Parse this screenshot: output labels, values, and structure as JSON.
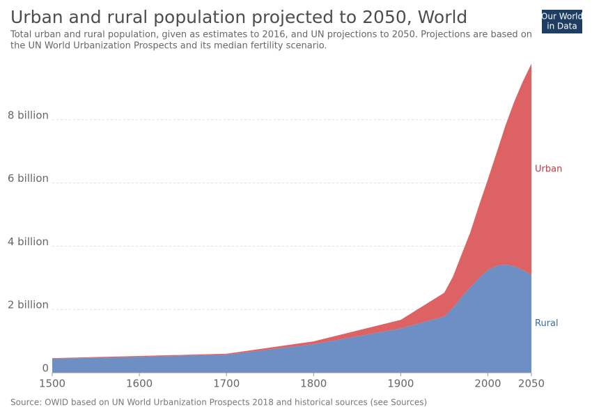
{
  "chart_data": {
    "type": "stacked-area",
    "title": "Urban and rural population projected to 2050, World",
    "subtitle": [
      "Total urban and rural population, given as estimates to 2016, and UN projections to 2050. Projections are based on",
      "the UN World Urbanization Prospects and its median fertility scenario."
    ],
    "logo": [
      "Our World",
      "in Data"
    ],
    "source": "Source: OWID based on UN World Urbanization Prospects 2018 and historical sources (see Sources)",
    "x": [
      1500,
      1600,
      1700,
      1800,
      1900,
      1950,
      1960,
      1970,
      1980,
      1990,
      2000,
      2010,
      2020,
      2030,
      2040,
      2050
    ],
    "series": [
      {
        "name": "Rural",
        "color": "#6e8fc4",
        "label_color": "#3b6aa8",
        "values": [
          0.44,
          0.5,
          0.57,
          0.9,
          1.4,
          1.78,
          2.05,
          2.4,
          2.7,
          3.0,
          3.25,
          3.38,
          3.42,
          3.37,
          3.25,
          3.1
        ]
      },
      {
        "name": "Urban",
        "color": "#dc6263",
        "label_color": "#c0393b",
        "values": [
          0.02,
          0.03,
          0.03,
          0.09,
          0.27,
          0.75,
          0.99,
          1.35,
          1.75,
          2.3,
          2.86,
          3.57,
          4.38,
          5.18,
          5.95,
          6.67
        ]
      }
    ],
    "xlim": [
      1500,
      2050
    ],
    "xticks": [
      1500,
      1600,
      1700,
      1800,
      1900,
      2000,
      2050
    ],
    "ylim": [
      0,
      10
    ],
    "yticks": [
      0,
      {
        "value": 2,
        "label": "2 billion"
      },
      {
        "value": 4,
        "label": "4 billion"
      },
      {
        "value": 6,
        "label": "6 billion"
      },
      {
        "value": 8,
        "label": "8 billion"
      }
    ],
    "grid": true
  }
}
